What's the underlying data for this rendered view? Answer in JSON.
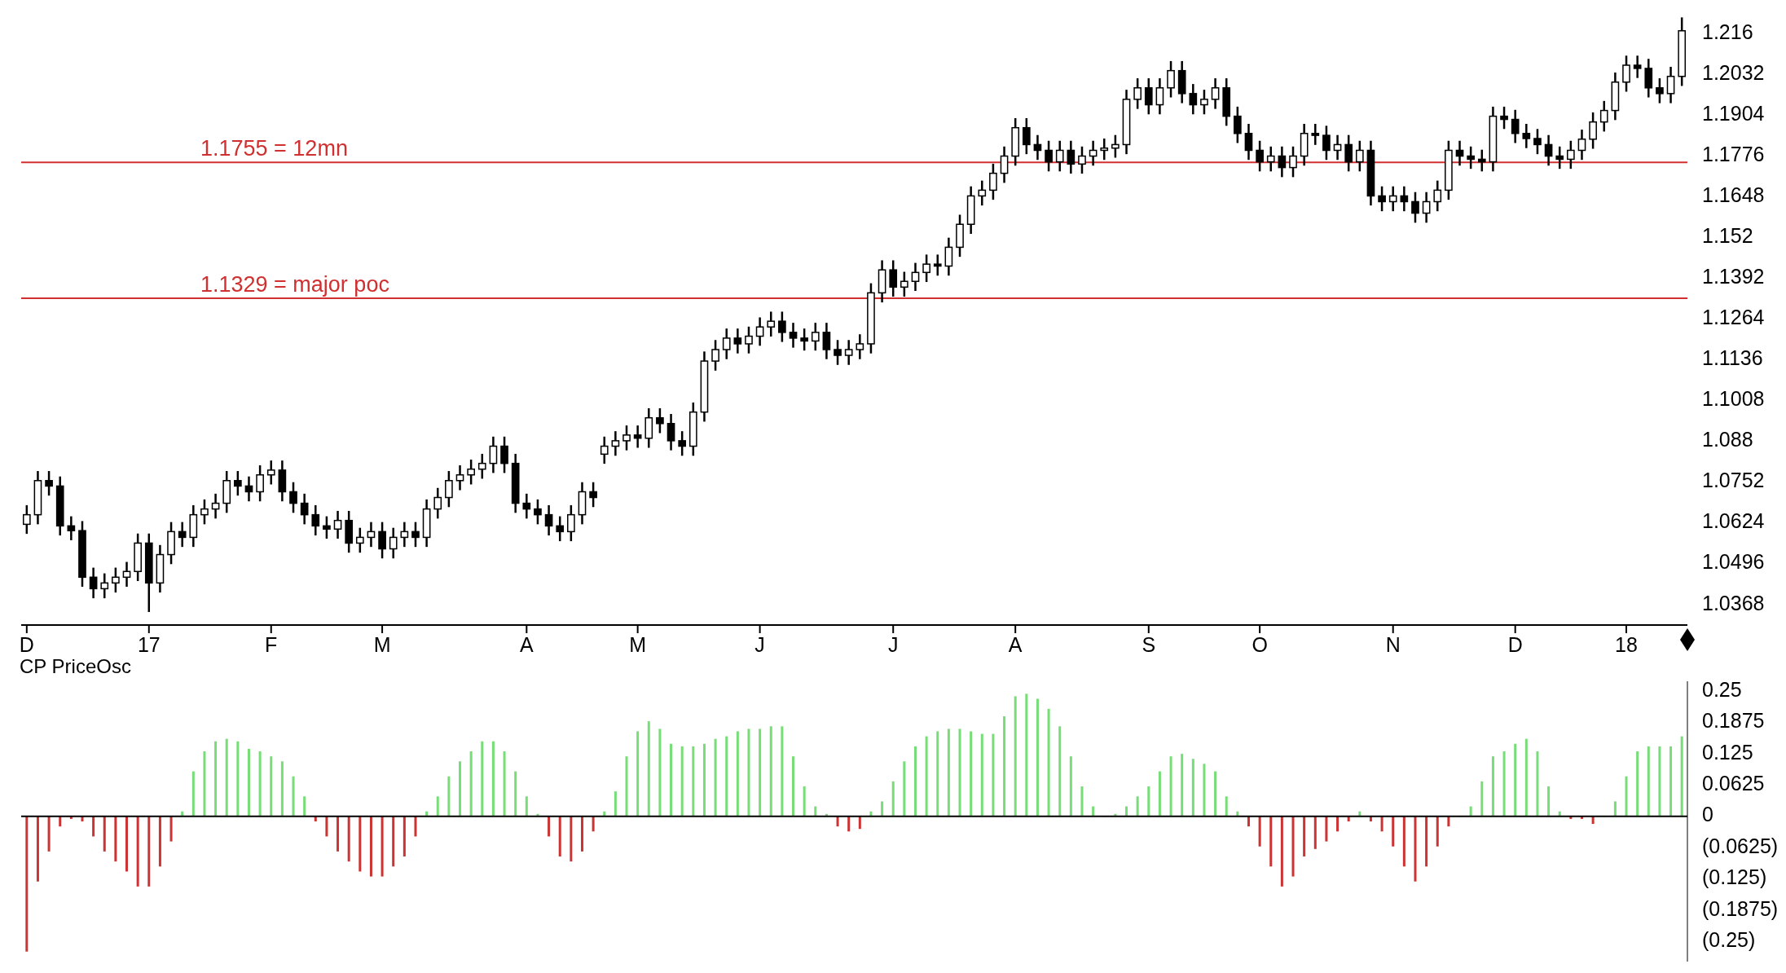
{
  "chart_data": [
    {
      "type": "candlestick",
      "color": "#000000",
      "categories": [
        "D",
        null,
        null,
        null,
        null,
        null,
        null,
        null,
        null,
        null,
        null,
        "17",
        null,
        null,
        null,
        null,
        null,
        null,
        null,
        null,
        null,
        null,
        "F",
        null,
        null,
        null,
        null,
        null,
        null,
        null,
        null,
        null,
        "M",
        null,
        null,
        null,
        null,
        null,
        null,
        null,
        null,
        null,
        null,
        null,
        null,
        "A",
        null,
        null,
        null,
        null,
        null,
        null,
        null,
        null,
        null,
        "M",
        null,
        null,
        null,
        null,
        null,
        null,
        null,
        null,
        null,
        null,
        "J",
        null,
        null,
        null,
        null,
        null,
        null,
        null,
        null,
        null,
        null,
        null,
        "J",
        null,
        null,
        null,
        null,
        null,
        null,
        null,
        null,
        null,
        null,
        "A",
        null,
        null,
        null,
        null,
        null,
        null,
        null,
        null,
        null,
        null,
        null,
        "S",
        null,
        null,
        null,
        null,
        null,
        null,
        null,
        null,
        null,
        "O",
        null,
        null,
        null,
        null,
        null,
        null,
        null,
        null,
        null,
        null,
        null,
        "N",
        null,
        null,
        null,
        null,
        null,
        null,
        null,
        null,
        null,
        null,
        "D",
        null,
        null,
        null,
        null,
        null,
        null,
        null,
        null,
        null,
        "18",
        null,
        null,
        null,
        null,
        null
      ],
      "ohlc": [
        [
          1.062,
          1.068,
          1.059,
          1.065
        ],
        [
          1.065,
          1.0787,
          1.062,
          1.0757
        ],
        [
          1.0757,
          1.0787,
          1.071,
          1.074
        ],
        [
          1.074,
          1.077,
          1.0585,
          1.0615
        ],
        [
          1.0615,
          1.0645,
          1.057,
          1.06
        ],
        [
          1.06,
          1.063,
          1.0424,
          1.0454
        ],
        [
          1.0454,
          1.0484,
          1.0388,
          1.0418
        ],
        [
          1.0418,
          1.0466,
          1.0388,
          1.0436
        ],
        [
          1.0436,
          1.0484,
          1.0406,
          1.0454
        ],
        [
          1.0454,
          1.0502,
          1.0424,
          1.0472
        ],
        [
          1.0472,
          1.0591,
          1.0442,
          1.0561
        ],
        [
          1.0561,
          1.0591,
          1.0345,
          1.0436
        ],
        [
          1.0436,
          1.0555,
          1.0406,
          1.0525
        ],
        [
          1.0525,
          1.0627,
          1.0495,
          1.0597
        ],
        [
          1.0597,
          1.0627,
          1.0549,
          1.0579
        ],
        [
          1.0579,
          1.068,
          1.0549,
          1.065
        ],
        [
          1.065,
          1.0698,
          1.062,
          1.0668
        ],
        [
          1.0668,
          1.0716,
          1.0638,
          1.0686
        ],
        [
          1.0686,
          1.0787,
          1.0656,
          1.0757
        ],
        [
          1.0757,
          1.0787,
          1.071,
          1.074
        ],
        [
          1.074,
          1.077,
          1.0692,
          1.0722
        ],
        [
          1.0722,
          1.0805,
          1.0692,
          1.0775
        ],
        [
          1.0775,
          1.082,
          1.0745,
          1.079
        ],
        [
          1.079,
          1.082,
          1.0692,
          1.0722
        ],
        [
          1.0722,
          1.0752,
          1.0656,
          1.0686
        ],
        [
          1.0686,
          1.0716,
          1.062,
          1.065
        ],
        [
          1.065,
          1.068,
          1.0585,
          1.0615
        ],
        [
          1.0615,
          1.0645,
          1.0575,
          1.0605
        ],
        [
          1.0605,
          1.0662,
          1.0575,
          1.0632
        ],
        [
          1.0632,
          1.0662,
          1.0531,
          1.0561
        ],
        [
          1.0561,
          1.0609,
          1.0531,
          1.0579
        ],
        [
          1.0579,
          1.0627,
          1.0549,
          1.0597
        ],
        [
          1.0597,
          1.0627,
          1.0513,
          1.0543
        ],
        [
          1.0543,
          1.0609,
          1.0513,
          1.0579
        ],
        [
          1.0579,
          1.0627,
          1.0549,
          1.0597
        ],
        [
          1.0597,
          1.0627,
          1.0549,
          1.0579
        ],
        [
          1.0579,
          1.0698,
          1.0549,
          1.0668
        ],
        [
          1.0668,
          1.0734,
          1.0638,
          1.0704
        ],
        [
          1.0704,
          1.0787,
          1.0674,
          1.0757
        ],
        [
          1.0757,
          1.0805,
          1.0727,
          1.0775
        ],
        [
          1.0775,
          1.0823,
          1.0745,
          1.0793
        ],
        [
          1.0793,
          1.0841,
          1.0763,
          1.0811
        ],
        [
          1.0811,
          1.0895,
          1.0781,
          1.0865
        ],
        [
          1.0865,
          1.0895,
          1.0781,
          1.0811
        ],
        [
          1.0811,
          1.0841,
          1.0656,
          1.0686
        ],
        [
          1.0686,
          1.0716,
          1.0638,
          1.0668
        ],
        [
          1.0668,
          1.0698,
          1.062,
          1.065
        ],
        [
          1.065,
          1.068,
          1.0585,
          1.0615
        ],
        [
          1.0615,
          1.0645,
          1.0567,
          1.0597
        ],
        [
          1.0597,
          1.068,
          1.0567,
          1.065
        ],
        [
          1.065,
          1.0752,
          1.062,
          1.0722
        ],
        [
          1.0722,
          1.0752,
          1.0674,
          1.0704
        ],
        [
          1.084,
          1.0895,
          1.081,
          1.0865
        ],
        [
          1.0865,
          1.0912,
          1.0835,
          1.0882
        ],
        [
          1.0882,
          1.093,
          1.0852,
          1.09
        ],
        [
          1.09,
          1.093,
          1.086,
          1.089
        ],
        [
          1.089,
          1.0984,
          1.086,
          1.0954
        ],
        [
          1.0954,
          1.0984,
          1.0906,
          1.0936
        ],
        [
          1.0936,
          1.0966,
          1.0852,
          1.0882
        ],
        [
          1.0882,
          1.0912,
          1.0835,
          1.0865
        ],
        [
          1.0865,
          1.1002,
          1.0835,
          1.0972
        ],
        [
          1.0972,
          1.1162,
          1.0942,
          1.1132
        ],
        [
          1.1132,
          1.1198,
          1.1102,
          1.1168
        ],
        [
          1.1168,
          1.1234,
          1.1138,
          1.1204
        ],
        [
          1.1204,
          1.1234,
          1.1156,
          1.1186
        ],
        [
          1.1186,
          1.124,
          1.1156,
          1.121
        ],
        [
          1.121,
          1.1269,
          1.118,
          1.1239
        ],
        [
          1.1239,
          1.1287,
          1.1209,
          1.1257
        ],
        [
          1.1257,
          1.1287,
          1.1192,
          1.1222
        ],
        [
          1.1222,
          1.1252,
          1.1174,
          1.1204
        ],
        [
          1.1204,
          1.1234,
          1.1165,
          1.1195
        ],
        [
          1.1195,
          1.1252,
          1.1165,
          1.1222
        ],
        [
          1.1222,
          1.1252,
          1.1138,
          1.1168
        ],
        [
          1.1168,
          1.1198,
          1.112,
          1.115
        ],
        [
          1.115,
          1.1198,
          1.112,
          1.1168
        ],
        [
          1.1168,
          1.1216,
          1.1138,
          1.1186
        ],
        [
          1.1186,
          1.1376,
          1.1156,
          1.1346
        ],
        [
          1.1346,
          1.1448,
          1.1316,
          1.1418
        ],
        [
          1.1418,
          1.1448,
          1.1334,
          1.1364
        ],
        [
          1.1364,
          1.1412,
          1.1334,
          1.1382
        ],
        [
          1.1382,
          1.144,
          1.1352,
          1.141
        ],
        [
          1.141,
          1.1466,
          1.138,
          1.1436
        ],
        [
          1.1436,
          1.1466,
          1.14,
          1.143
        ],
        [
          1.143,
          1.1519,
          1.14,
          1.1489
        ],
        [
          1.1489,
          1.1591,
          1.1459,
          1.1561
        ],
        [
          1.1561,
          1.168,
          1.1531,
          1.165
        ],
        [
          1.165,
          1.1698,
          1.162,
          1.1668
        ],
        [
          1.1668,
          1.1751,
          1.1638,
          1.1721
        ],
        [
          1.1721,
          1.1805,
          1.1691,
          1.1775
        ],
        [
          1.1775,
          1.1894,
          1.1745,
          1.1864
        ],
        [
          1.1864,
          1.1894,
          1.1781,
          1.1811
        ],
        [
          1.1811,
          1.1841,
          1.1763,
          1.1793
        ],
        [
          1.1793,
          1.1823,
          1.1727,
          1.1757
        ],
        [
          1.1757,
          1.1823,
          1.1727,
          1.1793
        ],
        [
          1.1793,
          1.1823,
          1.172,
          1.175
        ],
        [
          1.175,
          1.1805,
          1.172,
          1.1775
        ],
        [
          1.1775,
          1.1823,
          1.1745,
          1.1793
        ],
        [
          1.1793,
          1.183,
          1.1763,
          1.18
        ],
        [
          1.18,
          1.1841,
          1.177,
          1.1811
        ],
        [
          1.1811,
          1.1983,
          1.1781,
          1.1953
        ],
        [
          1.1953,
          1.2019,
          1.1923,
          1.1989
        ],
        [
          1.1989,
          1.2019,
          1.1906,
          1.1936
        ],
        [
          1.1936,
          1.2019,
          1.1906,
          1.1989
        ],
        [
          1.1989,
          1.2073,
          1.1959,
          1.2043
        ],
        [
          1.2043,
          1.2073,
          1.1941,
          1.1971
        ],
        [
          1.1971,
          1.2001,
          1.1906,
          1.1936
        ],
        [
          1.1936,
          1.1983,
          1.1906,
          1.1953
        ],
        [
          1.1953,
          1.2019,
          1.1923,
          1.1989
        ],
        [
          1.1989,
          1.2019,
          1.187,
          1.19
        ],
        [
          1.19,
          1.193,
          1.1816,
          1.1846
        ],
        [
          1.1846,
          1.1876,
          1.1763,
          1.1793
        ],
        [
          1.1793,
          1.1823,
          1.1727,
          1.1757
        ],
        [
          1.1757,
          1.1805,
          1.1727,
          1.1775
        ],
        [
          1.1775,
          1.1805,
          1.1709,
          1.1739
        ],
        [
          1.1739,
          1.1805,
          1.1709,
          1.1775
        ],
        [
          1.1775,
          1.1876,
          1.1745,
          1.1846
        ],
        [
          1.1846,
          1.1876,
          1.181,
          1.184
        ],
        [
          1.184,
          1.187,
          1.1763,
          1.1793
        ],
        [
          1.1793,
          1.1841,
          1.1763,
          1.1811
        ],
        [
          1.1811,
          1.1841,
          1.1727,
          1.1757
        ],
        [
          1.1757,
          1.1823,
          1.1727,
          1.1793
        ],
        [
          1.1793,
          1.1823,
          1.162,
          1.165
        ],
        [
          1.165,
          1.168,
          1.1602,
          1.1632
        ],
        [
          1.1632,
          1.168,
          1.1602,
          1.165
        ],
        [
          1.165,
          1.168,
          1.1602,
          1.1632
        ],
        [
          1.1632,
          1.1662,
          1.1566,
          1.1596
        ],
        [
          1.1596,
          1.1662,
          1.1566,
          1.1632
        ],
        [
          1.1632,
          1.1698,
          1.1602,
          1.1668
        ],
        [
          1.1668,
          1.1823,
          1.1638,
          1.1793
        ],
        [
          1.1793,
          1.1823,
          1.1745,
          1.1775
        ],
        [
          1.1775,
          1.1805,
          1.1735,
          1.1765
        ],
        [
          1.1765,
          1.1795,
          1.1727,
          1.1757
        ],
        [
          1.1757,
          1.193,
          1.1727,
          1.19
        ],
        [
          1.19,
          1.193,
          1.186,
          1.189
        ],
        [
          1.189,
          1.192,
          1.1816,
          1.1846
        ],
        [
          1.1846,
          1.1876,
          1.18,
          1.183
        ],
        [
          1.183,
          1.186,
          1.1781,
          1.1811
        ],
        [
          1.1811,
          1.1841,
          1.1745,
          1.1775
        ],
        [
          1.1775,
          1.1805,
          1.1735,
          1.1765
        ],
        [
          1.1765,
          1.1823,
          1.1735,
          1.1793
        ],
        [
          1.1793,
          1.1858,
          1.1763,
          1.1828
        ],
        [
          1.1828,
          1.1912,
          1.1798,
          1.1882
        ],
        [
          1.1882,
          1.1948,
          1.1852,
          1.1918
        ],
        [
          1.1918,
          1.2037,
          1.1888,
          1.2007
        ],
        [
          1.2007,
          1.209,
          1.1977,
          1.206
        ],
        [
          1.206,
          1.209,
          1.202,
          1.205
        ],
        [
          1.205,
          1.208,
          1.1959,
          1.1989
        ],
        [
          1.1989,
          1.2019,
          1.1941,
          1.1971
        ],
        [
          1.1971,
          1.2055,
          1.1941,
          1.2025
        ],
        [
          1.2025,
          1.221,
          1.1995,
          1.2168
        ]
      ],
      "ylim": [
        1.0304,
        1.2239
      ],
      "yticks": [
        1.0368,
        1.0496,
        1.0624,
        1.0752,
        1.088,
        1.1008,
        1.1136,
        1.1264,
        1.1392,
        1.152,
        1.1648,
        1.1776,
        1.1904,
        1.2032,
        1.216
      ],
      "ref_lines": [
        {
          "axis": "y",
          "value": 1.1755,
          "label": "1.1755 = 12mn",
          "color": "#d03030"
        },
        {
          "axis": "y",
          "value": 1.1329,
          "label": "1.1329 = major poc",
          "color": "#d03030"
        }
      ]
    },
    {
      "type": "bar",
      "title": "CP PriceOsc",
      "tick_labels": "y",
      "values": [
        -0.27,
        -0.13,
        -0.07,
        -0.02,
        -0.005,
        -0.01,
        -0.04,
        -0.07,
        -0.09,
        -0.11,
        -0.14,
        -0.14,
        -0.1,
        -0.05,
        0.01,
        0.09,
        0.13,
        0.15,
        0.155,
        0.15,
        0.135,
        0.13,
        0.12,
        0.11,
        0.08,
        0.04,
        -0.01,
        -0.04,
        -0.07,
        -0.09,
        -0.11,
        -0.12,
        -0.12,
        -0.1,
        -0.08,
        -0.04,
        0.01,
        0.04,
        0.08,
        0.11,
        0.13,
        0.15,
        0.15,
        0.13,
        0.09,
        0.04,
        0.005,
        -0.04,
        -0.08,
        -0.09,
        -0.07,
        -0.03,
        0.01,
        0.05,
        0.12,
        0.17,
        0.19,
        0.175,
        0.145,
        0.14,
        0.14,
        0.145,
        0.155,
        0.16,
        0.17,
        0.175,
        0.175,
        0.18,
        0.18,
        0.12,
        0.06,
        0.02,
        0.005,
        -0.02,
        -0.03,
        -0.025,
        0.01,
        0.03,
        0.07,
        0.11,
        0.14,
        0.16,
        0.17,
        0.175,
        0.175,
        0.17,
        0.165,
        0.165,
        0.2,
        0.24,
        0.245,
        0.235,
        0.215,
        0.18,
        0.12,
        0.06,
        0.02,
        0,
        0.005,
        0.02,
        0.04,
        0.06,
        0.09,
        0.12,
        0.125,
        0.115,
        0.105,
        0.09,
        0.04,
        0.01,
        -0.02,
        -0.06,
        -0.1,
        -0.14,
        -0.12,
        -0.08,
        -0.065,
        -0.05,
        -0.03,
        -0.01,
        0.01,
        -0.01,
        -0.03,
        -0.06,
        -0.1,
        -0.13,
        -0.1,
        -0.06,
        -0.02,
        0,
        0.02,
        0.07,
        0.12,
        0.13,
        0.145,
        0.155,
        0.13,
        0.06,
        0.01,
        -0.005,
        -0.005,
        -0.015,
        0,
        0.03,
        0.08,
        0.13,
        0.14,
        0.14,
        0.14,
        0.16
      ],
      "colors": [
        "#cc3333",
        "#cc3333",
        "#cc3333",
        "#cc3333",
        "#cc3333",
        "#cc3333",
        "#cc3333",
        "#cc3333",
        "#cc3333",
        "#cc3333",
        "#cc3333",
        "#cc3333",
        "#cc3333",
        "#cc3333",
        "#77dd77",
        "#77dd77",
        "#77dd77",
        "#77dd77",
        "#77dd77",
        "#77dd77",
        "#77dd77",
        "#77dd77",
        "#77dd77",
        "#77dd77",
        "#77dd77",
        "#77dd77",
        "#cc3333",
        "#cc3333",
        "#cc3333",
        "#cc3333",
        "#cc3333",
        "#cc3333",
        "#cc3333",
        "#cc3333",
        "#cc3333",
        "#cc3333",
        "#77dd77",
        "#77dd77",
        "#77dd77",
        "#77dd77",
        "#77dd77",
        "#77dd77",
        "#77dd77",
        "#77dd77",
        "#77dd77",
        "#77dd77",
        "#77dd77",
        "#cc3333",
        "#cc3333",
        "#cc3333",
        "#cc3333",
        "#cc3333",
        "#77dd77",
        "#77dd77",
        "#77dd77",
        "#77dd77",
        "#77dd77",
        "#77dd77",
        "#77dd77",
        "#77dd77",
        "#77dd77",
        "#77dd77",
        "#77dd77",
        "#77dd77",
        "#77dd77",
        "#77dd77",
        "#77dd77",
        "#77dd77",
        "#77dd77",
        "#77dd77",
        "#77dd77",
        "#77dd77",
        "#77dd77",
        "#cc3333",
        "#cc3333",
        "#cc3333",
        "#77dd77",
        "#77dd77",
        "#77dd77",
        "#77dd77",
        "#77dd77",
        "#77dd77",
        "#77dd77",
        "#77dd77",
        "#77dd77",
        "#77dd77",
        "#77dd77",
        "#77dd77",
        "#77dd77",
        "#77dd77",
        "#77dd77",
        "#77dd77",
        "#77dd77",
        "#77dd77",
        "#77dd77",
        "#77dd77",
        "#77dd77",
        "#77dd77",
        "#77dd77",
        "#77dd77",
        "#77dd77",
        "#77dd77",
        "#77dd77",
        "#77dd77",
        "#77dd77",
        "#77dd77",
        "#77dd77",
        "#77dd77",
        "#77dd77",
        "#77dd77",
        "#cc3333",
        "#cc3333",
        "#cc3333",
        "#cc3333",
        "#cc3333",
        "#cc3333",
        "#cc3333",
        "#cc3333",
        "#cc3333",
        "#cc3333",
        "#77dd77",
        "#cc3333",
        "#cc3333",
        "#cc3333",
        "#cc3333",
        "#cc3333",
        "#cc3333",
        "#cc3333",
        "#cc3333",
        "#77dd77",
        "#77dd77",
        "#77dd77",
        "#77dd77",
        "#77dd77",
        "#77dd77",
        "#77dd77",
        "#77dd77",
        "#77dd77",
        "#77dd77",
        "#cc3333",
        "#cc3333",
        "#cc3333",
        "#77dd77",
        "#77dd77",
        "#77dd77",
        "#77dd77",
        "#77dd77",
        "#77dd77",
        "#77dd77",
        "#77dd77"
      ],
      "ylim": [
        -0.29,
        0.27
      ],
      "yticks": [
        0.25,
        0.1875,
        0.125,
        0.0625,
        0,
        {
          "value": -0.0625,
          "label": "(0.0625)"
        },
        {
          "value": -0.125,
          "label": "(0.125)"
        },
        {
          "value": -0.1875,
          "label": "(0.1875)"
        },
        {
          "value": -0.25,
          "label": "(0.25)"
        }
      ]
    }
  ]
}
